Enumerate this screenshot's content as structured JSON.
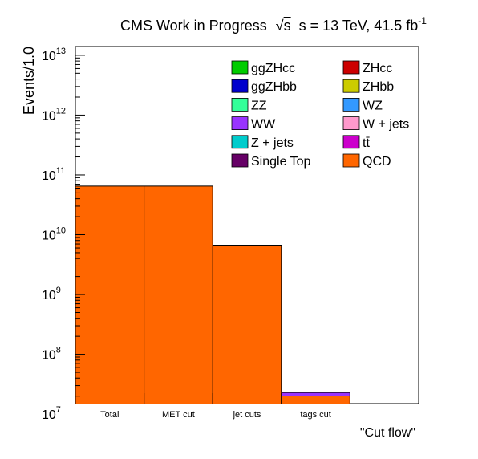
{
  "chart_data": {
    "type": "bar",
    "title_main": "CMS Work in Progress",
    "title_energy": "s = 13 TeV, 41.5 fb",
    "title_lumi_exponent": "-1",
    "ylabel": "Events/1.0",
    "xlabel": "\"Cut flow\"",
    "yscale": "log",
    "ylim": [
      15000000,
      14000000000000
    ],
    "yticks": [
      {
        "base": "10",
        "exp": "7"
      },
      {
        "base": "10",
        "exp": "8"
      },
      {
        "base": "10",
        "exp": "9"
      },
      {
        "base": "10",
        "exp": "10"
      },
      {
        "base": "10",
        "exp": "11"
      },
      {
        "base": "10",
        "exp": "12"
      },
      {
        "base": "10",
        "exp": "13"
      }
    ],
    "categories": [
      "Total",
      "MET cut",
      "jet cuts",
      "tags cut",
      ""
    ],
    "stack": [
      {
        "name": "QCD",
        "color": "#ff6600",
        "values": [
          65000000000,
          65000000000,
          6700000000,
          20000000,
          0
        ]
      },
      {
        "name": "WW",
        "color": "#9933ff",
        "values": [
          0,
          0,
          0,
          3000000,
          0
        ]
      }
    ],
    "legend": {
      "placement": "top-right",
      "columns": 2,
      "entries": [
        {
          "name": "ggZHcc",
          "color": "#00cc00"
        },
        {
          "name": "ZHcc",
          "color": "#cc0000"
        },
        {
          "name": "ggZHbb",
          "color": "#0000cc"
        },
        {
          "name": "ZHbb",
          "color": "#cccc00"
        },
        {
          "name": "ZZ",
          "color": "#33ff99"
        },
        {
          "name": "WZ",
          "color": "#3399ff"
        },
        {
          "name": "WW",
          "color": "#9933ff"
        },
        {
          "name": "W + jets",
          "color": "#ff99cc"
        },
        {
          "name": "Z + jets",
          "color": "#00cccc"
        },
        {
          "name": "tt̄",
          "color": "#cc00cc"
        },
        {
          "name": "Single Top",
          "color": "#660066"
        },
        {
          "name": "QCD",
          "color": "#ff6600"
        }
      ]
    }
  }
}
